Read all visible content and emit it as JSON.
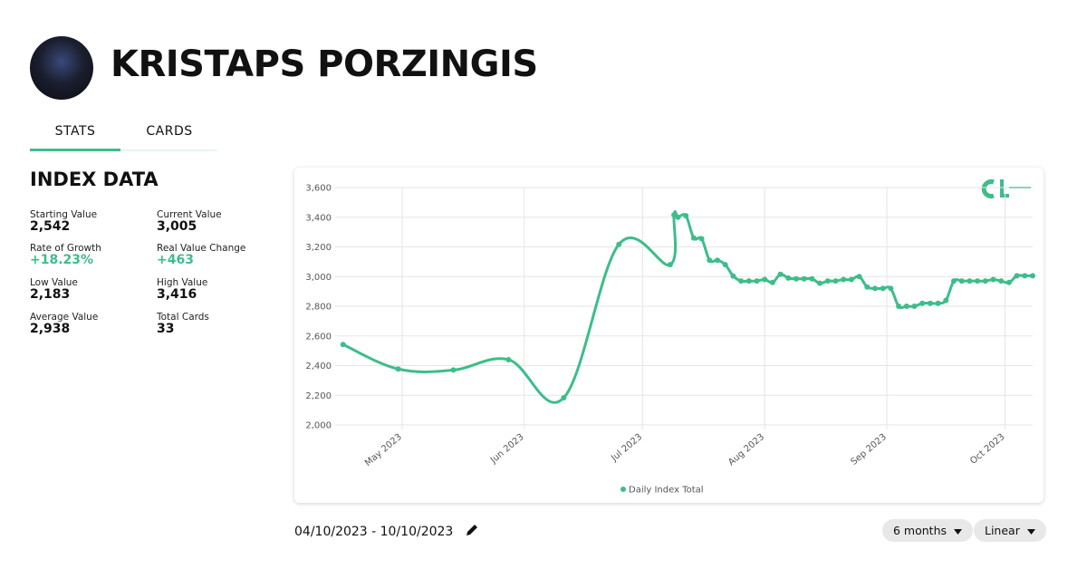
{
  "header": {
    "name": "KRISTAPS PORZINGIS"
  },
  "tabs": [
    "STATS",
    "CARDS"
  ],
  "index_data": {
    "title": "INDEX DATA",
    "stats": [
      {
        "label": "Starting Value",
        "value": "2,542"
      },
      {
        "label": "Current Value",
        "value": "3,005"
      },
      {
        "label": "Rate of Growth",
        "value": "+18.23%"
      },
      {
        "label": "Real Value Change",
        "value": "+463"
      },
      {
        "label": "Low Value",
        "value": "2,183"
      },
      {
        "label": "High Value",
        "value": "3,416"
      },
      {
        "label": "Average Value",
        "value": "2,938"
      },
      {
        "label": "Total Cards",
        "value": "33"
      }
    ]
  },
  "chart_data": {
    "type": "line",
    "x": [
      "2023-04-16",
      "2023-04-30",
      "2023-05-14",
      "2023-05-28",
      "2023-06-11",
      "2023-06-25",
      "2023-07-08",
      "2023-07-09",
      "2023-07-10",
      "2023-07-12",
      "2023-07-14",
      "2023-07-16",
      "2023-07-18",
      "2023-07-20",
      "2023-07-22",
      "2023-07-24",
      "2023-07-26",
      "2023-07-28",
      "2023-07-30",
      "2023-08-01",
      "2023-08-03",
      "2023-08-05",
      "2023-08-07",
      "2023-08-09",
      "2023-08-11",
      "2023-08-13",
      "2023-08-15",
      "2023-08-17",
      "2023-08-19",
      "2023-08-21",
      "2023-08-23",
      "2023-08-25",
      "2023-08-27",
      "2023-08-29",
      "2023-08-31",
      "2023-09-02",
      "2023-09-04",
      "2023-09-06",
      "2023-09-08",
      "2023-09-10",
      "2023-09-12",
      "2023-09-14",
      "2023-09-16",
      "2023-09-18",
      "2023-09-20",
      "2023-09-22",
      "2023-09-24",
      "2023-09-26",
      "2023-09-28",
      "2023-09-30",
      "2023-10-02",
      "2023-10-04",
      "2023-10-06",
      "2023-10-08"
    ],
    "series": [
      {
        "name": "Daily Index Total",
        "color": "#3dbd8a",
        "values": [
          2542,
          2377,
          2370,
          2440,
          2183,
          3217,
          3080,
          3416,
          3400,
          3410,
          3260,
          3255,
          3110,
          3110,
          3080,
          3004,
          2970,
          2970,
          2970,
          2980,
          2960,
          3015,
          2990,
          2985,
          2985,
          2985,
          2955,
          2970,
          2970,
          2980,
          2980,
          3000,
          2930,
          2920,
          2920,
          2920,
          2800,
          2800,
          2800,
          2820,
          2820,
          2820,
          2840,
          2970,
          2970,
          2970,
          2970,
          2970,
          2980,
          2970,
          2960,
          3005,
          3005,
          3005
        ]
      }
    ],
    "xlim": [
      "2023-04-14",
      "2023-10-08"
    ],
    "xticks": [
      {
        "value": "2023-05-01",
        "label": "May 2023"
      },
      {
        "value": "2023-06-01",
        "label": "Jun 2023"
      },
      {
        "value": "2023-07-01",
        "label": "Jul 2023"
      },
      {
        "value": "2023-08-01",
        "label": "Aug 2023"
      },
      {
        "value": "2023-09-01",
        "label": "Sep 2023"
      },
      {
        "value": "2023-10-01",
        "label": "Oct 2023"
      }
    ],
    "ylim": [
      2000,
      3600
    ],
    "yticks": [
      {
        "value": 2000,
        "label": "2,000"
      },
      {
        "value": 2200,
        "label": "2,200"
      },
      {
        "value": 2400,
        "label": "2,400"
      },
      {
        "value": 2600,
        "label": "2,600"
      },
      {
        "value": 2800,
        "label": "2,800"
      },
      {
        "value": 3000,
        "label": "3,000"
      },
      {
        "value": 3200,
        "label": "3,200"
      },
      {
        "value": 3400,
        "label": "3,400"
      },
      {
        "value": 3600,
        "label": "3,600"
      }
    ],
    "grid": true,
    "legend": "bottom"
  },
  "footer": {
    "date_range": "04/10/2023 - 10/10/2023",
    "period": "6 months",
    "scale": "Linear"
  }
}
